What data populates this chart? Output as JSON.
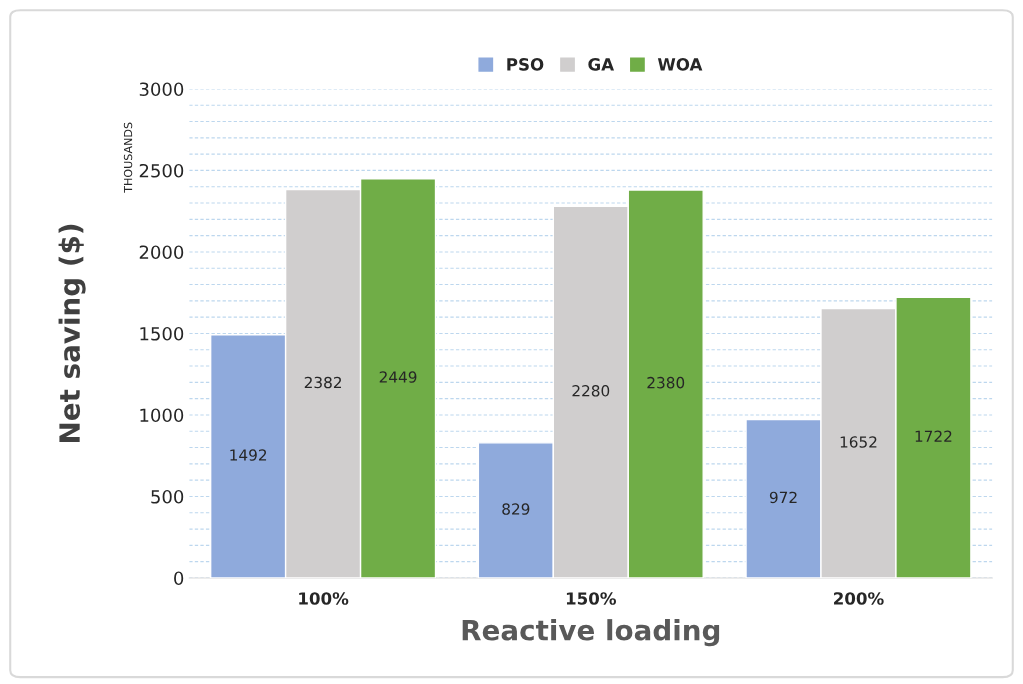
{
  "chart_data": {
    "type": "bar",
    "xlabel": "Reactive loading",
    "ylabel": "Net saving ($)",
    "categories": [
      "100%",
      "150%",
      "200%"
    ],
    "series": [
      {
        "name": "PSO",
        "color": "#8faadc",
        "values": [
          1492,
          829,
          972
        ]
      },
      {
        "name": "GA",
        "color": "#d0cece",
        "values": [
          2382,
          2280,
          1652
        ]
      },
      {
        "name": "WOA",
        "color": "#70ad47",
        "values": [
          2449,
          2380,
          1722
        ]
      }
    ],
    "ylim": [
      0,
      3000
    ],
    "yticks": [
      0,
      500,
      1000,
      1500,
      2000,
      2500,
      3000
    ],
    "annotations": [
      "THOUSANDS"
    ],
    "data_labels": true,
    "grid": "y",
    "legend": "top"
  }
}
